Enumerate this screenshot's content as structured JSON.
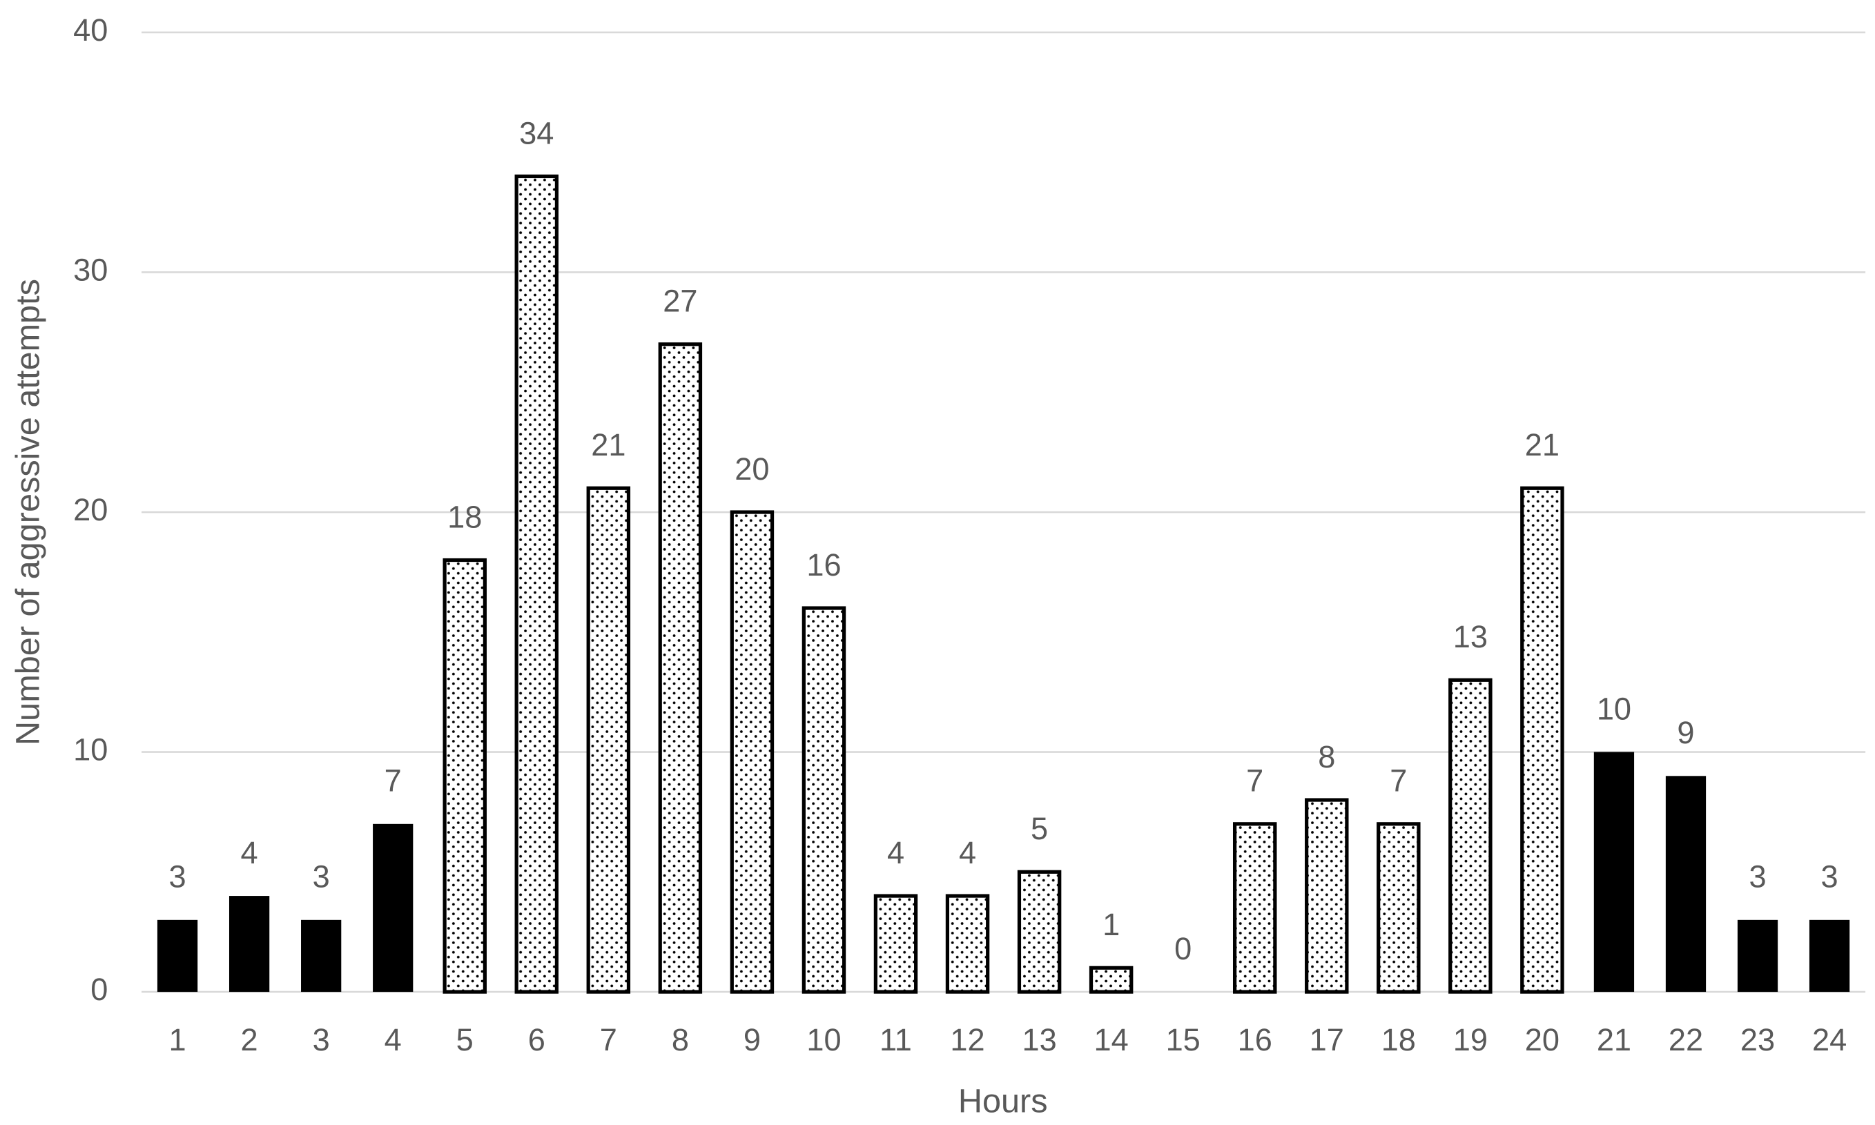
{
  "chart_data": {
    "type": "bar",
    "x_label": "Hours",
    "y_label": "Number of aggressive attempts",
    "categories": [
      "1",
      "2",
      "3",
      "4",
      "5",
      "6",
      "7",
      "8",
      "9",
      "10",
      "11",
      "12",
      "13",
      "14",
      "15",
      "16",
      "17",
      "18",
      "19",
      "20",
      "21",
      "22",
      "23",
      "24"
    ],
    "values": [
      3,
      4,
      3,
      7,
      18,
      34,
      21,
      27,
      20,
      16,
      4,
      4,
      5,
      1,
      0,
      7,
      8,
      7,
      13,
      21,
      10,
      9,
      3,
      3
    ],
    "patterns": [
      "solid",
      "solid",
      "solid",
      "solid",
      "dots",
      "dots",
      "dots",
      "dots",
      "dots",
      "dots",
      "dots",
      "dots",
      "dots",
      "dots",
      "dots",
      "dots",
      "dots",
      "dots",
      "dots",
      "dots",
      "solid",
      "solid",
      "solid",
      "solid"
    ],
    "color": "#000000",
    "ylim": [
      0,
      40
    ],
    "yticks": [
      0,
      10,
      20,
      30,
      40
    ],
    "grid": true
  }
}
